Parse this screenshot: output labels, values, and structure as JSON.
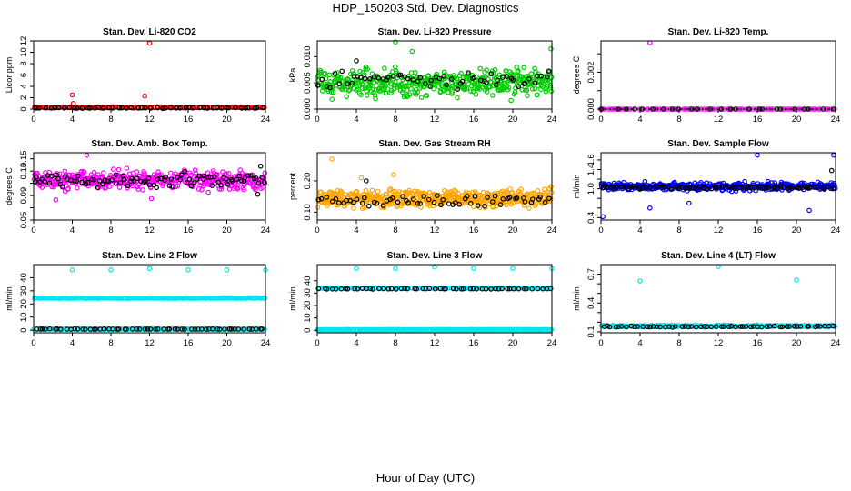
{
  "figure": {
    "title": "HDP_150203  Std. Dev. Diagnostics",
    "xlabel": "Hour of Day (UTC)"
  },
  "chart_data": [
    {
      "type": "scatter",
      "title": "Stan. Dev. Li-820 CO2",
      "ylabel": "Licor ppm",
      "xlim": [
        0,
        24
      ],
      "ylim": [
        0,
        12
      ],
      "xticks": [
        0,
        4,
        8,
        12,
        16,
        20,
        24
      ],
      "yticks": [
        0,
        2,
        4,
        6,
        8,
        10,
        12
      ],
      "series": [
        {
          "name": "line",
          "color": "#ff0000",
          "baseline": 0.3,
          "spread": 0.15,
          "count": 140,
          "points": [
            [
              0.1,
              0.3
            ],
            [
              4,
              2.5
            ],
            [
              4.1,
              1.0
            ],
            [
              11.5,
              2.3
            ],
            [
              12,
              11.6
            ],
            [
              0.3,
              0.4
            ]
          ]
        },
        {
          "name": "mean",
          "color": "#000000",
          "baseline": 0.2,
          "spread": 0.1,
          "count": 50,
          "points": []
        }
      ]
    },
    {
      "type": "scatter",
      "title": "Stan. Dev. Li-820 Pressure",
      "ylabel": "kPa",
      "xlim": [
        0,
        24
      ],
      "ylim": [
        0,
        0.013
      ],
      "xticks": [
        0,
        4,
        8,
        12,
        16,
        20,
        24
      ],
      "yticks": [
        0,
        0.005,
        0.01
      ],
      "ytick_labels": [
        "0.000",
        "0.005",
        "0.010"
      ],
      "series": [
        {
          "name": "line",
          "color": "#00cc00",
          "baseline": 0.005,
          "spread": 0.0035,
          "count": 480,
          "points": [
            [
              8,
              0.0128
            ],
            [
              23.9,
              0.0115
            ],
            [
              9.7,
              0.011
            ]
          ]
        },
        {
          "name": "mean",
          "color": "#000000",
          "baseline": 0.0055,
          "spread": 0.0025,
          "count": 60,
          "points": [
            [
              4,
              0.0092
            ]
          ]
        }
      ]
    },
    {
      "type": "scatter",
      "title": "Stan. Dev. Li-820 Temp.",
      "ylabel": "degrees C",
      "xlim": [
        0,
        24
      ],
      "ylim": [
        0,
        0.0037
      ],
      "xticks": [
        0,
        4,
        8,
        12,
        16,
        20,
        24
      ],
      "yticks": [
        0,
        0.001,
        0.002,
        0.003
      ],
      "ytick_labels": [
        "0.000",
        "",
        "0.002",
        ""
      ],
      "series": [
        {
          "name": "line",
          "color": "#ff00ff",
          "baseline": 0.0,
          "spread": 0.0,
          "count": 90,
          "points": [
            [
              5,
              0.0036
            ],
            [
              0,
              0.0
            ]
          ]
        },
        {
          "name": "mean",
          "color": "#000000",
          "baseline": 0.0,
          "spread": 0.0,
          "count": 25,
          "points": []
        }
      ]
    },
    {
      "type": "scatter",
      "title": "Stan. Dev. Amb. Box Temp.",
      "ylabel": "degrees C",
      "xlim": [
        0,
        24
      ],
      "ylim": [
        0.05,
        0.16
      ],
      "xticks": [
        0,
        4,
        8,
        12,
        16,
        20,
        24
      ],
      "yticks": [
        0.05,
        0.07,
        0.09,
        0.11,
        0.13,
        0.15
      ],
      "ytick_labels": [
        "0.05",
        "",
        "0.09",
        "",
        "0.13",
        "0.15"
      ],
      "series": [
        {
          "name": "line",
          "color": "#ff00ff",
          "baseline": 0.115,
          "spread": 0.022,
          "count": 420,
          "points": [
            [
              5.5,
              0.156
            ],
            [
              2.3,
              0.083
            ],
            [
              12.2,
              0.085
            ]
          ]
        },
        {
          "name": "mean",
          "color": "#000000",
          "baseline": 0.115,
          "spread": 0.016,
          "count": 90,
          "points": [
            [
              23.5,
              0.138
            ],
            [
              23.2,
              0.092
            ]
          ]
        }
      ]
    },
    {
      "type": "scatter",
      "title": "Stan. Dev. Gas Stream RH",
      "ylabel": "percent",
      "xlim": [
        0,
        24
      ],
      "ylim": [
        0.075,
        0.29
      ],
      "xticks": [
        0,
        4,
        8,
        12,
        16,
        20,
        24
      ],
      "yticks": [
        0.1,
        0.2
      ],
      "ytick_labels": [
        "0.10",
        "0.20"
      ],
      "series": [
        {
          "name": "line",
          "color": "#ffa500",
          "baseline": 0.145,
          "spread": 0.04,
          "count": 480,
          "points": [
            [
              1.5,
              0.27
            ],
            [
              4.5,
              0.21
            ],
            [
              7.8,
              0.22
            ]
          ]
        },
        {
          "name": "mean",
          "color": "#000000",
          "baseline": 0.14,
          "spread": 0.03,
          "count": 60,
          "points": [
            [
              5,
              0.2
            ]
          ]
        }
      ]
    },
    {
      "type": "scatter",
      "title": "Stan. Dev. Sample Flow",
      "ylabel": "ml/min",
      "xlim": [
        0,
        24
      ],
      "ylim": [
        0.35,
        1.75
      ],
      "xticks": [
        0,
        4,
        8,
        12,
        16,
        20,
        24
      ],
      "yticks": [
        0.4,
        0.6,
        0.8,
        1.0,
        1.2,
        1.4,
        1.6
      ],
      "ytick_labels": [
        "0.4",
        "",
        "",
        "1.0",
        "",
        "1.4",
        "1.6"
      ],
      "series": [
        {
          "name": "line",
          "color": "#0000ff",
          "baseline": 1.05,
          "spread": 0.12,
          "count": 430,
          "points": [
            [
              0.2,
              0.42
            ],
            [
              16,
              1.7
            ],
            [
              21.3,
              0.55
            ],
            [
              23.8,
              1.7
            ],
            [
              5,
              0.6
            ],
            [
              9,
              0.7
            ]
          ]
        },
        {
          "name": "mean",
          "color": "#000000",
          "baseline": 1.02,
          "spread": 0.05,
          "count": 80,
          "points": [
            [
              23.6,
              1.38
            ]
          ]
        }
      ]
    },
    {
      "type": "scatter",
      "title": "Stan. Dev. Line 2 Flow",
      "ylabel": "ml/min",
      "xlim": [
        0,
        24
      ],
      "ylim": [
        -2,
        50
      ],
      "xticks": [
        0,
        4,
        8,
        12,
        16,
        20,
        24
      ],
      "yticks": [
        0,
        10,
        20,
        30,
        40
      ],
      "series": [
        {
          "name": "line",
          "color": "#00e5ee",
          "baseline": 24.5,
          "spread": 0.4,
          "count": 230,
          "points": [
            [
              4,
              46
            ],
            [
              8,
              46
            ],
            [
              12,
              47
            ],
            [
              16,
              46
            ],
            [
              20,
              46
            ],
            [
              24,
              46
            ]
          ]
        },
        {
          "name": "line-low",
          "color": "#00e5ee",
          "baseline": 0.8,
          "spread": 0.2,
          "count": 150,
          "points": []
        },
        {
          "name": "mean",
          "color": "#000000",
          "baseline": 0.8,
          "spread": 0.2,
          "count": 60,
          "points": []
        }
      ]
    },
    {
      "type": "scatter",
      "title": "Stan. Dev. Line 3 Flow",
      "ylabel": "ml/min",
      "xlim": [
        0,
        24
      ],
      "ylim": [
        -2,
        53
      ],
      "xticks": [
        0,
        4,
        8,
        12,
        16,
        20,
        24
      ],
      "yticks": [
        0,
        10,
        20,
        30,
        40
      ],
      "series": [
        {
          "name": "line",
          "color": "#00e5ee",
          "baseline": 34,
          "spread": 0.3,
          "count": 120,
          "points": [
            [
              4,
              50
            ],
            [
              8,
              50
            ],
            [
              12,
              51
            ],
            [
              16,
              50
            ],
            [
              20,
              50
            ],
            [
              24,
              50
            ]
          ]
        },
        {
          "name": "line-low",
          "color": "#00e5ee",
          "baseline": 0.5,
          "spread": 0.3,
          "count": 250,
          "points": []
        },
        {
          "name": "mean",
          "color": "#000000",
          "baseline": 33.5,
          "spread": 0.4,
          "count": 55,
          "points": []
        }
      ]
    },
    {
      "type": "scatter",
      "title": "Stan. Dev. Line 4 (LT) Flow",
      "ylabel": "ml/min",
      "xlim": [
        0,
        24
      ],
      "ylim": [
        0.09,
        0.8
      ],
      "xticks": [
        0,
        4,
        8,
        12,
        16,
        20,
        24
      ],
      "yticks": [
        0.1,
        0.2,
        0.3,
        0.4,
        0.5,
        0.6,
        0.7
      ],
      "ytick_labels": [
        "0.1",
        "",
        "",
        "0.4",
        "",
        "",
        "0.7"
      ],
      "series": [
        {
          "name": "line",
          "color": "#00e5ee",
          "baseline": 0.16,
          "spread": 0.015,
          "count": 260,
          "points": [
            [
              4,
              0.63
            ],
            [
              12,
              0.78
            ],
            [
              20,
              0.64
            ]
          ]
        },
        {
          "name": "mean",
          "color": "#000000",
          "baseline": 0.155,
          "spread": 0.01,
          "count": 60,
          "points": []
        }
      ]
    }
  ]
}
